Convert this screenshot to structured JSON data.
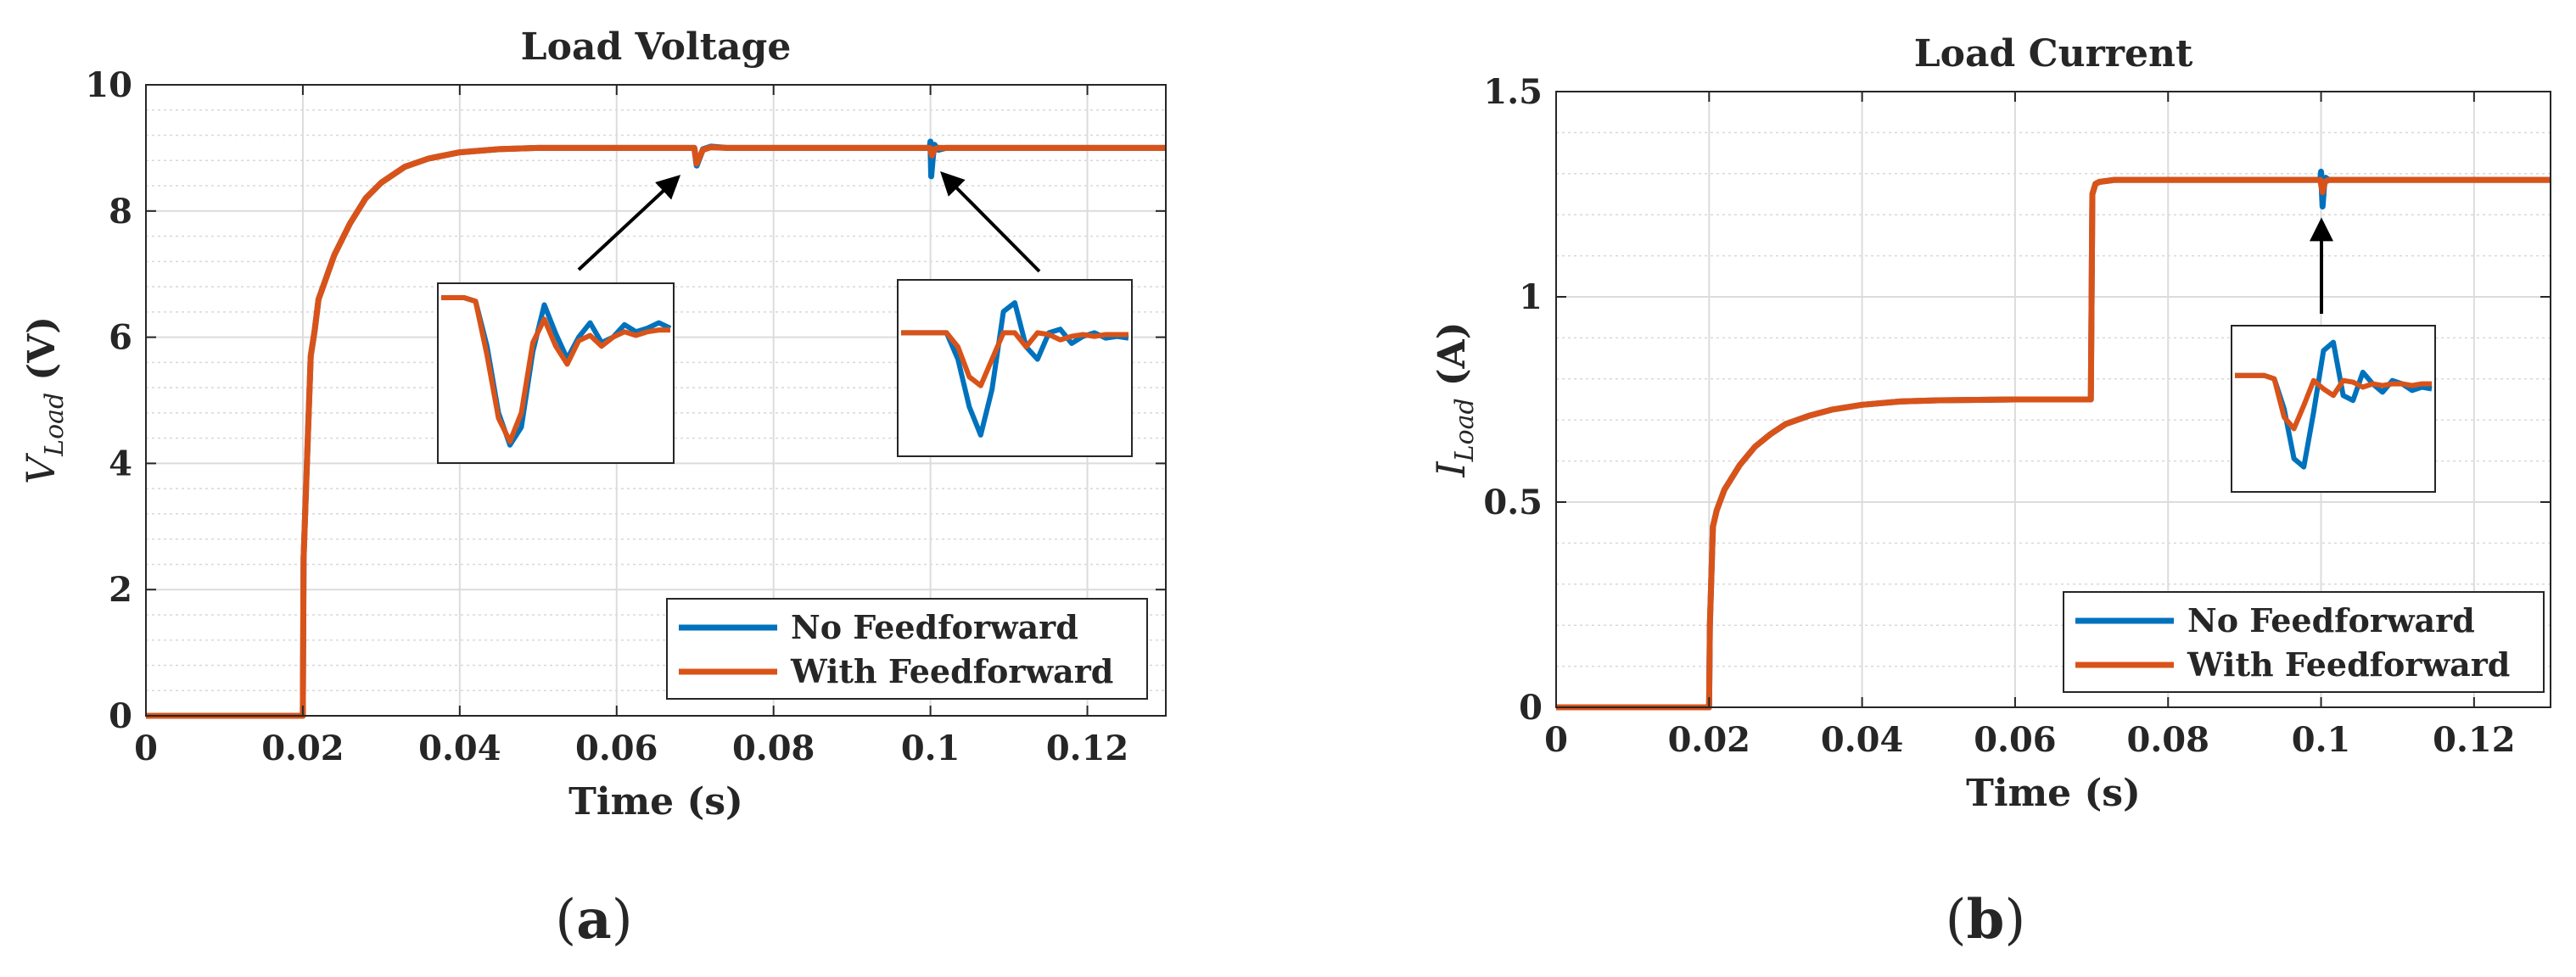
{
  "chart_data": [
    {
      "type": "line",
      "panel_label": "a",
      "title": "Load Voltage",
      "xlabel": "Time (s)",
      "ylabel_main": "V",
      "ylabel_sub": "Load",
      "ylabel_unit": "(V)",
      "xlim": [
        0,
        0.13
      ],
      "ylim": [
        0,
        10
      ],
      "xticks": [
        0,
        0.02,
        0.04,
        0.06,
        0.08,
        0.1,
        0.12
      ],
      "xtick_labels": [
        "0",
        "0.02",
        "0.04",
        "0.06",
        "0.08",
        "0.1",
        "0.12"
      ],
      "yticks": [
        0,
        2,
        4,
        6,
        8,
        10
      ],
      "ytick_labels": [
        "0",
        "2",
        "4",
        "6",
        "8",
        "10"
      ],
      "grid": true,
      "legend_position": "bottom-right",
      "series": [
        {
          "name": "No Feedforward",
          "color": "#0072BD",
          "x": [
            0,
            0.02,
            0.0201,
            0.021,
            0.0215,
            0.022,
            0.024,
            0.026,
            0.028,
            0.03,
            0.033,
            0.036,
            0.04,
            0.045,
            0.05,
            0.06,
            0.0699,
            0.0702,
            0.0706,
            0.071,
            0.072,
            0.074,
            0.08,
            0.0999,
            0.1,
            0.1001,
            0.1003,
            0.1005,
            0.101,
            0.102,
            0.11,
            0.12,
            0.13
          ],
          "y": [
            0,
            0,
            2.5,
            5.7,
            6.1,
            6.6,
            7.3,
            7.8,
            8.2,
            8.45,
            8.7,
            8.83,
            8.93,
            8.98,
            9.0,
            9.0,
            9.0,
            8.72,
            8.85,
            8.98,
            9.02,
            9.0,
            9.0,
            9.0,
            9.1,
            8.55,
            8.85,
            9.05,
            8.97,
            9.0,
            9.0,
            9.0,
            9.0
          ]
        },
        {
          "name": "With Feedforward",
          "color": "#D95319",
          "x": [
            0,
            0.02,
            0.0201,
            0.021,
            0.0215,
            0.022,
            0.024,
            0.026,
            0.028,
            0.03,
            0.033,
            0.036,
            0.04,
            0.045,
            0.05,
            0.06,
            0.0699,
            0.0702,
            0.0706,
            0.071,
            0.072,
            0.074,
            0.08,
            0.0999,
            0.1002,
            0.1005,
            0.101,
            0.102,
            0.11,
            0.12,
            0.13
          ],
          "y": [
            0,
            0,
            2.5,
            5.7,
            6.1,
            6.6,
            7.3,
            7.8,
            8.2,
            8.45,
            8.7,
            8.83,
            8.93,
            8.98,
            9.0,
            9.0,
            9.0,
            8.75,
            8.86,
            8.97,
            9.01,
            9.0,
            9.0,
            9.0,
            8.88,
            8.98,
            9.0,
            9.0,
            9.0,
            9.0,
            9.0
          ]
        }
      ],
      "insets": [
        {
          "pointer": "x≈0.07 dip",
          "series": [
            {
              "name": "No Feedforward",
              "color": "#0072BD",
              "y": [
                0.08,
                0.08,
                0.08,
                0.1,
                0.35,
                0.72,
                0.9,
                0.8,
                0.38,
                0.12,
                0.28,
                0.42,
                0.3,
                0.22,
                0.33,
                0.3,
                0.23,
                0.27,
                0.25,
                0.22,
                0.25
              ]
            },
            {
              "name": "With Feedforward",
              "color": "#D95319",
              "y": [
                0.08,
                0.08,
                0.08,
                0.1,
                0.4,
                0.75,
                0.88,
                0.72,
                0.33,
                0.2,
                0.35,
                0.45,
                0.32,
                0.29,
                0.35,
                0.3,
                0.27,
                0.29,
                0.27,
                0.26,
                0.26
              ]
            }
          ]
        },
        {
          "pointer": "x≈0.10 spike",
          "series": [
            {
              "name": "No Feedforward",
              "color": "#0072BD",
              "y": [
                0.3,
                0.3,
                0.3,
                0.3,
                0.3,
                0.45,
                0.72,
                0.88,
                0.62,
                0.18,
                0.13,
                0.38,
                0.45,
                0.3,
                0.28,
                0.36,
                0.32,
                0.3,
                0.33,
                0.32,
                0.33
              ]
            },
            {
              "name": "With Feedforward",
              "color": "#D95319",
              "y": [
                0.3,
                0.3,
                0.3,
                0.3,
                0.3,
                0.38,
                0.55,
                0.6,
                0.45,
                0.3,
                0.3,
                0.38,
                0.3,
                0.31,
                0.34,
                0.32,
                0.31,
                0.32,
                0.31,
                0.31,
                0.31
              ]
            }
          ]
        }
      ]
    },
    {
      "type": "line",
      "panel_label": "b",
      "title": "Load Current",
      "xlabel": "Time (s)",
      "ylabel_main": "I",
      "ylabel_sub": "Load",
      "ylabel_unit": "(A)",
      "xlim": [
        0,
        0.13
      ],
      "ylim": [
        0,
        1.5
      ],
      "xticks": [
        0,
        0.02,
        0.04,
        0.06,
        0.08,
        0.1,
        0.12
      ],
      "xtick_labels": [
        "0",
        "0.02",
        "0.04",
        "0.06",
        "0.08",
        "0.1",
        "0.12"
      ],
      "yticks": [
        0,
        0.5,
        1,
        1.5
      ],
      "ytick_labels": [
        "0",
        "0.5",
        "1",
        "1.5"
      ],
      "grid": true,
      "legend_position": "bottom-right",
      "series": [
        {
          "name": "No Feedforward",
          "color": "#0072BD",
          "x": [
            0,
            0.02,
            0.0201,
            0.0205,
            0.021,
            0.022,
            0.024,
            0.026,
            0.028,
            0.03,
            0.033,
            0.036,
            0.04,
            0.045,
            0.05,
            0.06,
            0.0699,
            0.0701,
            0.0705,
            0.071,
            0.073,
            0.08,
            0.0999,
            0.1,
            0.1002,
            0.1004,
            0.1006,
            0.101,
            0.11,
            0.12,
            0.13
          ],
          "y": [
            0,
            0,
            0.2,
            0.44,
            0.48,
            0.53,
            0.59,
            0.635,
            0.665,
            0.69,
            0.71,
            0.725,
            0.737,
            0.745,
            0.748,
            0.75,
            0.75,
            1.25,
            1.275,
            1.28,
            1.285,
            1.285,
            1.285,
            1.305,
            1.22,
            1.27,
            1.29,
            1.285,
            1.285,
            1.285,
            1.285
          ]
        },
        {
          "name": "With Feedforward",
          "color": "#D95319",
          "x": [
            0,
            0.02,
            0.0201,
            0.0205,
            0.021,
            0.022,
            0.024,
            0.026,
            0.028,
            0.03,
            0.033,
            0.036,
            0.04,
            0.045,
            0.05,
            0.06,
            0.0699,
            0.0701,
            0.0705,
            0.071,
            0.073,
            0.08,
            0.0999,
            0.1002,
            0.1005,
            0.101,
            0.11,
            0.12,
            0.13
          ],
          "y": [
            0,
            0,
            0.2,
            0.44,
            0.48,
            0.53,
            0.59,
            0.635,
            0.665,
            0.69,
            0.71,
            0.725,
            0.737,
            0.745,
            0.748,
            0.75,
            0.75,
            1.25,
            1.275,
            1.28,
            1.285,
            1.285,
            1.285,
            1.255,
            1.28,
            1.285,
            1.285,
            1.285,
            1.285
          ]
        }
      ],
      "insets": [
        {
          "pointer": "x≈0.10 dip",
          "series": [
            {
              "name": "No Feedforward",
              "color": "#0072BD",
              "y": [
                0.3,
                0.3,
                0.3,
                0.3,
                0.32,
                0.5,
                0.8,
                0.85,
                0.52,
                0.15,
                0.1,
                0.42,
                0.45,
                0.28,
                0.35,
                0.4,
                0.33,
                0.35,
                0.39,
                0.37,
                0.38
              ]
            },
            {
              "name": "With Feedforward",
              "color": "#D95319",
              "y": [
                0.3,
                0.3,
                0.3,
                0.3,
                0.32,
                0.55,
                0.62,
                0.48,
                0.33,
                0.38,
                0.42,
                0.33,
                0.34,
                0.37,
                0.35,
                0.36,
                0.35,
                0.35,
                0.36,
                0.35,
                0.35
              ]
            }
          ]
        }
      ]
    }
  ]
}
